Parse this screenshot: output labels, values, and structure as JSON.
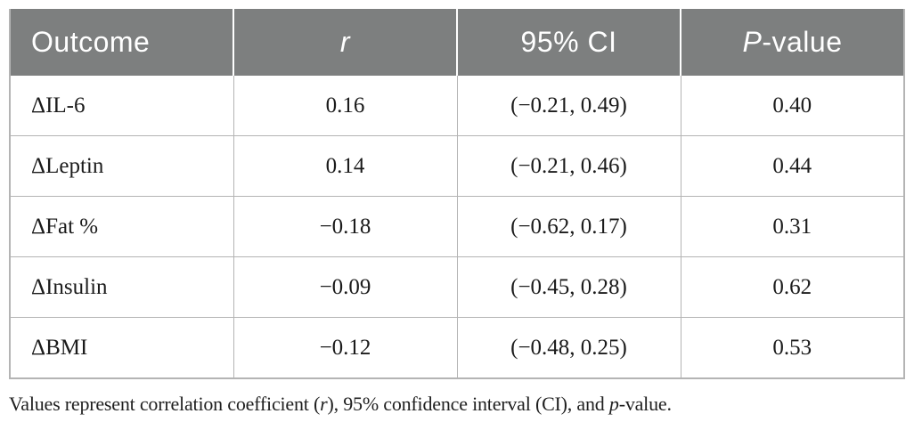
{
  "colors": {
    "header_bg": "#7d7f7f",
    "header_text": "#ffffff",
    "border": "#b4b4b4",
    "body_text": "#1b1b1b",
    "page_bg": "#ffffff"
  },
  "table": {
    "columns": [
      {
        "name": "outcome",
        "align": "left",
        "segments": [
          {
            "text": "Outcome",
            "italic": false
          }
        ]
      },
      {
        "name": "r",
        "align": "center",
        "segments": [
          {
            "text": "r",
            "italic": true
          }
        ]
      },
      {
        "name": "ci",
        "align": "center",
        "segments": [
          {
            "text": "95% CI",
            "italic": false
          }
        ]
      },
      {
        "name": "p-value",
        "align": "center",
        "segments": [
          {
            "text": "P",
            "italic": true
          },
          {
            "text": "-value",
            "italic": false
          }
        ]
      }
    ],
    "rows": [
      {
        "outcome": "ΔIL-6",
        "r": "0.16",
        "ci": "(−0.21, 0.49)",
        "p": "0.40"
      },
      {
        "outcome": "ΔLeptin",
        "r": "0.14",
        "ci": "(−0.21, 0.46)",
        "p": "0.44"
      },
      {
        "outcome": "ΔFat %",
        "r": "−0.18",
        "ci": "(−0.62, 0.17)",
        "p": "0.31"
      },
      {
        "outcome": "ΔInsulin",
        "r": "−0.09",
        "ci": "(−0.45, 0.28)",
        "p": "0.62"
      },
      {
        "outcome": "ΔBMI",
        "r": "−0.12",
        "ci": "(−0.48, 0.25)",
        "p": "0.53"
      }
    ]
  },
  "footnote": {
    "segments": [
      {
        "text": "Values represent correlation coefficient (",
        "italic": false
      },
      {
        "text": "r",
        "italic": true
      },
      {
        "text": "), 95% confidence interval (CI), and ",
        "italic": false
      },
      {
        "text": "p",
        "italic": true
      },
      {
        "text": "-value.",
        "italic": false
      }
    ]
  },
  "chart_data": {
    "type": "table",
    "columns": [
      "Outcome",
      "r",
      "95% CI",
      "P-value"
    ],
    "rows": [
      [
        "ΔIL-6",
        "0.16",
        "(−0.21, 0.49)",
        "0.40"
      ],
      [
        "ΔLeptin",
        "0.14",
        "(−0.21, 0.46)",
        "0.44"
      ],
      [
        "ΔFat %",
        "−0.18",
        "(−0.62, 0.17)",
        "0.31"
      ],
      [
        "ΔInsulin",
        "−0.09",
        "(−0.45, 0.28)",
        "0.62"
      ],
      [
        "ΔBMI",
        "−0.12",
        "(−0.48, 0.25)",
        "0.53"
      ]
    ],
    "footnote": "Values represent correlation coefficient (r), 95% confidence interval (CI), and p-value."
  }
}
